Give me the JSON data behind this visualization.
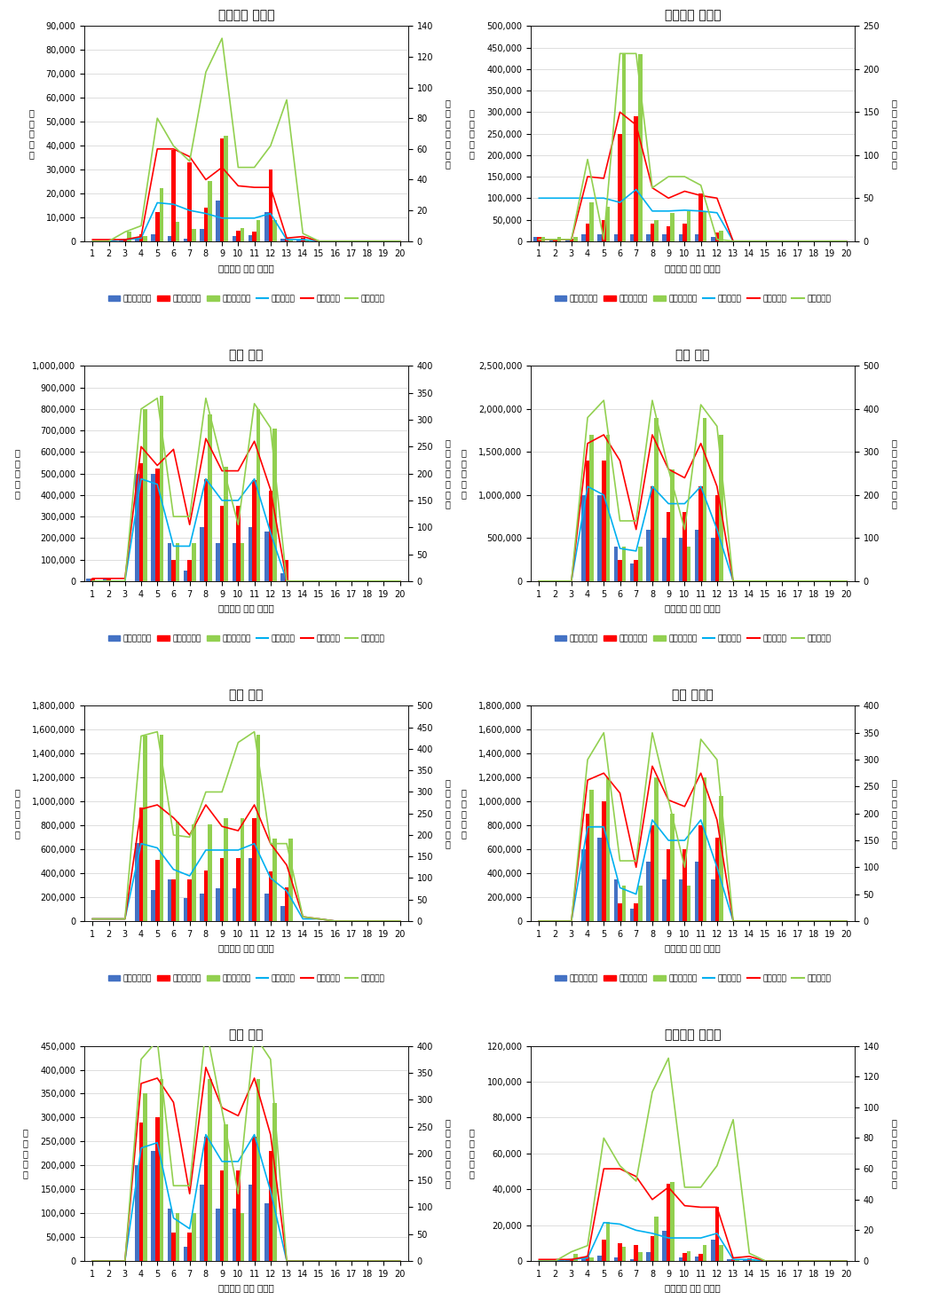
{
  "charts": [
    {
      "title": "전라남도 영암군",
      "left_ylim": [
        0,
        90000
      ],
      "right_ylim": [
        0,
        140
      ],
      "left_yticks": [
        0,
        10000,
        20000,
        30000,
        40000,
        50000,
        60000,
        70000,
        80000,
        90000
      ],
      "right_yticks": [
        0,
        20,
        40,
        60,
        80,
        100,
        120,
        140
      ],
      "bar_min": [
        0,
        0,
        500,
        1500,
        3000,
        2000,
        1000,
        5000,
        17000,
        2000,
        2500,
        12000,
        1000,
        500,
        0,
        0,
        0,
        0,
        0,
        0
      ],
      "bar_mid": [
        0,
        0,
        1000,
        3000,
        12000,
        38000,
        33000,
        14000,
        43000,
        4500,
        4000,
        30000,
        1000,
        1500,
        0,
        0,
        0,
        0,
        0,
        0
      ],
      "bar_max": [
        0,
        0,
        4000,
        2000,
        22000,
        8000,
        5000,
        25000,
        44000,
        5500,
        9000,
        9000,
        500,
        500,
        0,
        0,
        0,
        0,
        0,
        0
      ],
      "line_min": [
        0,
        0,
        1,
        2,
        25,
        24,
        20,
        18,
        15,
        15,
        15,
        18,
        1,
        1,
        0,
        0,
        0,
        0,
        0,
        0
      ],
      "line_mid": [
        1,
        1,
        1,
        3,
        60,
        60,
        55,
        40,
        48,
        36,
        35,
        35,
        2,
        3,
        0,
        0,
        0,
        0,
        0,
        0
      ],
      "line_max": [
        0,
        0,
        6,
        10,
        80,
        62,
        52,
        110,
        132,
        48,
        48,
        62,
        92,
        5,
        0,
        0,
        0,
        0,
        0,
        0
      ]
    },
    {
      "title": "전라남도 완도군",
      "left_ylim": [
        0,
        500000
      ],
      "right_ylim": [
        0,
        250
      ],
      "left_yticks": [
        0,
        50000,
        100000,
        150000,
        200000,
        250000,
        300000,
        350000,
        400000,
        450000,
        500000
      ],
      "right_yticks": [
        0,
        50,
        100,
        150,
        200,
        250
      ],
      "bar_min": [
        10000,
        5000,
        5000,
        15000,
        15000,
        15000,
        15000,
        15000,
        15000,
        15000,
        15000,
        10000,
        0,
        0,
        0,
        0,
        0,
        0,
        0,
        0
      ],
      "bar_mid": [
        10000,
        5000,
        5000,
        40000,
        50000,
        250000,
        290000,
        40000,
        35000,
        40000,
        110000,
        20000,
        0,
        0,
        0,
        0,
        0,
        0,
        0,
        0
      ],
      "bar_max": [
        10000,
        10000,
        10000,
        90000,
        80000,
        435000,
        435000,
        50000,
        65000,
        70000,
        70000,
        25000,
        0,
        0,
        0,
        0,
        0,
        0,
        0,
        0
      ],
      "line_min": [
        50,
        50,
        50,
        50,
        50,
        45,
        60,
        35,
        35,
        36,
        35,
        33,
        0,
        0,
        0,
        0,
        0,
        0,
        0,
        0
      ],
      "line_mid": [
        2,
        2,
        2,
        75,
        73,
        150,
        135,
        62,
        50,
        58,
        53,
        50,
        0,
        0,
        0,
        0,
        0,
        0,
        0,
        0
      ],
      "line_max": [
        2,
        2,
        2,
        95,
        2,
        218,
        218,
        62,
        75,
        75,
        65,
        2,
        0,
        0,
        0,
        0,
        0,
        0,
        0,
        0
      ]
    },
    {
      "title": "울산 남구",
      "left_ylim": [
        0,
        1000000
      ],
      "right_ylim": [
        0,
        400
      ],
      "left_yticks": [
        0,
        100000,
        200000,
        300000,
        400000,
        500000,
        600000,
        700000,
        800000,
        900000,
        1000000
      ],
      "right_yticks": [
        0,
        50,
        100,
        150,
        200,
        250,
        300,
        350,
        400
      ],
      "bar_min": [
        10000,
        10000,
        0,
        500000,
        500000,
        175000,
        50000,
        250000,
        175000,
        175000,
        250000,
        230000,
        35000,
        0,
        0,
        0,
        0,
        0,
        0,
        0
      ],
      "bar_mid": [
        10000,
        10000,
        0,
        550000,
        525000,
        100000,
        100000,
        475000,
        350000,
        350000,
        470000,
        420000,
        100000,
        0,
        0,
        0,
        0,
        0,
        0,
        0
      ],
      "bar_max": [
        0,
        0,
        0,
        800000,
        860000,
        175000,
        175000,
        775000,
        530000,
        175000,
        800000,
        710000,
        0,
        0,
        0,
        0,
        0,
        0,
        0,
        0
      ],
      "line_min": [
        0,
        0,
        0,
        190,
        180,
        65,
        65,
        190,
        150,
        150,
        190,
        90,
        0,
        0,
        0,
        0,
        0,
        0,
        0,
        0
      ],
      "line_mid": [
        5,
        5,
        5,
        250,
        215,
        245,
        105,
        265,
        205,
        205,
        260,
        170,
        0,
        0,
        0,
        0,
        0,
        0,
        0,
        0
      ],
      "line_max": [
        0,
        0,
        0,
        320,
        340,
        120,
        120,
        340,
        220,
        105,
        330,
        285,
        0,
        0,
        0,
        0,
        0,
        0,
        0,
        0
      ]
    },
    {
      "title": "울산 동구",
      "left_ylim": [
        0,
        2500000
      ],
      "right_ylim": [
        0,
        500
      ],
      "left_yticks": [
        0,
        500000,
        1000000,
        1500000,
        2000000,
        2500000
      ],
      "right_yticks": [
        0,
        100,
        200,
        300,
        400,
        500
      ],
      "bar_min": [
        0,
        0,
        0,
        1000000,
        1000000,
        400000,
        200000,
        600000,
        500000,
        500000,
        600000,
        500000,
        0,
        0,
        0,
        0,
        0,
        0,
        0,
        0
      ],
      "bar_mid": [
        0,
        0,
        0,
        1400000,
        1400000,
        250000,
        250000,
        1100000,
        800000,
        800000,
        1100000,
        1000000,
        0,
        0,
        0,
        0,
        0,
        0,
        0,
        0
      ],
      "bar_max": [
        0,
        0,
        0,
        1700000,
        1700000,
        400000,
        400000,
        1900000,
        1300000,
        400000,
        1900000,
        1700000,
        0,
        0,
        0,
        0,
        0,
        0,
        0,
        0
      ],
      "line_min": [
        0,
        0,
        0,
        220,
        200,
        76,
        70,
        220,
        180,
        180,
        220,
        120,
        0,
        0,
        0,
        0,
        0,
        0,
        0,
        0
      ],
      "line_mid": [
        0,
        0,
        0,
        320,
        340,
        280,
        120,
        340,
        260,
        240,
        320,
        220,
        0,
        0,
        0,
        0,
        0,
        0,
        0,
        0
      ],
      "line_max": [
        0,
        0,
        0,
        380,
        420,
        140,
        140,
        420,
        260,
        120,
        410,
        360,
        0,
        0,
        0,
        0,
        0,
        0,
        0,
        0
      ]
    },
    {
      "title": "울산 북구",
      "left_ylim": [
        0,
        1800000
      ],
      "right_ylim": [
        0,
        500
      ],
      "left_yticks": [
        0,
        200000,
        400000,
        600000,
        800000,
        1000000,
        1200000,
        1400000,
        1600000,
        1800000
      ],
      "right_yticks": [
        0,
        50,
        100,
        150,
        200,
        250,
        300,
        350,
        400,
        450,
        500
      ],
      "bar_min": [
        0,
        0,
        0,
        650000,
        260000,
        350000,
        190000,
        230000,
        275000,
        275000,
        530000,
        230000,
        125000,
        0,
        0,
        0,
        0,
        0,
        0,
        0
      ],
      "bar_mid": [
        0,
        0,
        0,
        950000,
        510000,
        350000,
        350000,
        425000,
        525000,
        525000,
        860000,
        415000,
        280000,
        0,
        0,
        0,
        0,
        0,
        0,
        0
      ],
      "bar_max": [
        0,
        0,
        0,
        1550000,
        1560000,
        830000,
        810000,
        810000,
        860000,
        860000,
        1560000,
        690000,
        690000,
        0,
        0,
        0,
        0,
        0,
        0,
        0
      ],
      "line_min": [
        5,
        5,
        5,
        180,
        170,
        120,
        105,
        165,
        165,
        165,
        180,
        100,
        70,
        5,
        5,
        0,
        0,
        0,
        0,
        0
      ],
      "line_mid": [
        5,
        5,
        5,
        260,
        270,
        240,
        200,
        270,
        220,
        210,
        270,
        180,
        130,
        10,
        5,
        0,
        0,
        0,
        0,
        0
      ],
      "line_max": [
        5,
        5,
        5,
        430,
        440,
        200,
        195,
        300,
        300,
        415,
        440,
        180,
        180,
        10,
        5,
        0,
        0,
        0,
        0,
        0
      ]
    },
    {
      "title": "울산 울주군",
      "left_ylim": [
        0,
        1800000
      ],
      "right_ylim": [
        0,
        400
      ],
      "left_yticks": [
        0,
        200000,
        400000,
        600000,
        800000,
        1000000,
        1200000,
        1400000,
        1600000,
        1800000
      ],
      "right_yticks": [
        0,
        50,
        100,
        150,
        200,
        250,
        300,
        350,
        400
      ],
      "bar_min": [
        0,
        0,
        0,
        600000,
        700000,
        350000,
        100000,
        500000,
        350000,
        350000,
        500000,
        350000,
        0,
        0,
        0,
        0,
        0,
        0,
        0,
        0
      ],
      "bar_mid": [
        0,
        0,
        0,
        900000,
        1000000,
        150000,
        150000,
        800000,
        600000,
        600000,
        800000,
        700000,
        0,
        0,
        0,
        0,
        0,
        0,
        0,
        0
      ],
      "bar_max": [
        0,
        0,
        0,
        1100000,
        1200000,
        300000,
        300000,
        1200000,
        900000,
        300000,
        1200000,
        1050000,
        0,
        0,
        0,
        0,
        0,
        0,
        0,
        0
      ],
      "line_min": [
        0,
        0,
        0,
        175,
        175,
        62,
        50,
        188,
        150,
        150,
        188,
        100,
        0,
        0,
        0,
        0,
        0,
        0,
        0,
        0
      ],
      "line_mid": [
        0,
        0,
        0,
        262,
        275,
        238,
        100,
        288,
        225,
        213,
        275,
        188,
        0,
        0,
        0,
        0,
        0,
        0,
        0,
        0
      ],
      "line_max": [
        0,
        0,
        0,
        300,
        350,
        112,
        112,
        350,
        225,
        100,
        338,
        300,
        0,
        0,
        0,
        0,
        0,
        0,
        0,
        0
      ]
    },
    {
      "title": "울산 중구",
      "left_ylim": [
        0,
        450000
      ],
      "right_ylim": [
        0,
        400
      ],
      "left_yticks": [
        0,
        50000,
        100000,
        150000,
        200000,
        250000,
        300000,
        350000,
        400000,
        450000
      ],
      "right_yticks": [
        0,
        50,
        100,
        150,
        200,
        250,
        300,
        350,
        400
      ],
      "bar_min": [
        0,
        0,
        0,
        200000,
        230000,
        110000,
        30000,
        160000,
        110000,
        110000,
        160000,
        120000,
        0,
        0,
        0,
        0,
        0,
        0,
        0,
        0
      ],
      "bar_mid": [
        0,
        0,
        0,
        290000,
        300000,
        60000,
        60000,
        260000,
        190000,
        190000,
        260000,
        230000,
        0,
        0,
        0,
        0,
        0,
        0,
        0,
        0
      ],
      "bar_max": [
        0,
        0,
        0,
        350000,
        380000,
        100000,
        100000,
        380000,
        285000,
        100000,
        380000,
        330000,
        0,
        0,
        0,
        0,
        0,
        0,
        0,
        0
      ],
      "line_min": [
        0,
        0,
        0,
        210,
        220,
        80,
        60,
        235,
        185,
        185,
        235,
        130,
        0,
        0,
        0,
        0,
        0,
        0,
        0,
        0
      ],
      "line_mid": [
        0,
        0,
        0,
        330,
        340,
        295,
        125,
        360,
        285,
        270,
        340,
        235,
        0,
        0,
        0,
        0,
        0,
        0,
        0,
        0
      ],
      "line_max": [
        0,
        0,
        0,
        375,
        410,
        140,
        140,
        435,
        280,
        125,
        420,
        375,
        0,
        0,
        0,
        0,
        0,
        0,
        0,
        0
      ]
    },
    {
      "title": "전라남도 장흥군",
      "left_ylim": [
        0,
        120000
      ],
      "right_ylim": [
        0,
        140
      ],
      "left_yticks": [
        0,
        20000,
        40000,
        60000,
        80000,
        100000,
        120000
      ],
      "right_yticks": [
        0,
        20,
        40,
        60,
        80,
        100,
        120,
        140
      ],
      "bar_min": [
        0,
        0,
        500,
        1500,
        3000,
        2000,
        1000,
        5000,
        17000,
        2000,
        2500,
        12000,
        1000,
        500,
        0,
        0,
        0,
        0,
        0,
        0
      ],
      "bar_mid": [
        0,
        0,
        1000,
        3000,
        12000,
        10000,
        9000,
        14000,
        43000,
        4500,
        4000,
        30000,
        1000,
        1500,
        0,
        0,
        0,
        0,
        0,
        0
      ],
      "bar_max": [
        0,
        0,
        4000,
        2000,
        22000,
        8000,
        5000,
        25000,
        44000,
        5500,
        9000,
        9000,
        500,
        500,
        0,
        0,
        0,
        0,
        0,
        0
      ],
      "line_min": [
        0,
        0,
        1,
        2,
        25,
        24,
        20,
        18,
        15,
        15,
        15,
        18,
        1,
        1,
        0,
        0,
        0,
        0,
        0,
        0
      ],
      "line_mid": [
        1,
        1,
        1,
        3,
        60,
        60,
        55,
        40,
        48,
        36,
        35,
        35,
        2,
        3,
        0,
        0,
        0,
        0,
        0,
        0
      ],
      "line_max": [
        0,
        0,
        6,
        10,
        80,
        62,
        52,
        110,
        132,
        48,
        48,
        62,
        92,
        5,
        0,
        0,
        0,
        0,
        0,
        0
      ]
    }
  ],
  "x_labels": [
    1,
    2,
    3,
    4,
    5,
    6,
    7,
    8,
    9,
    10,
    11,
    12,
    13,
    14,
    15,
    16,
    17,
    18,
    19,
    20
  ],
  "xlabel": "동네예보 시간 데이터",
  "left_ylabel_chars": [
    "예",
    "측",
    "피",
    "해",
    "액"
  ],
  "right_ylabel_chars": [
    "동",
    "네",
    "예",
    "보",
    "강",
    "수",
    "량"
  ],
  "colors": {
    "bar_min": "#4472c4",
    "bar_mid": "#ff0000",
    "bar_max": "#92d050",
    "line_min": "#00b0f0",
    "line_mid": "#ff0000",
    "line_max": "#92d050"
  },
  "legend_labels": [
    "최소총피해액",
    "중간총피해액",
    "최대총피해액",
    "최소강수량",
    "중간강수량",
    "최대강수량"
  ],
  "bar_width": 0.25
}
